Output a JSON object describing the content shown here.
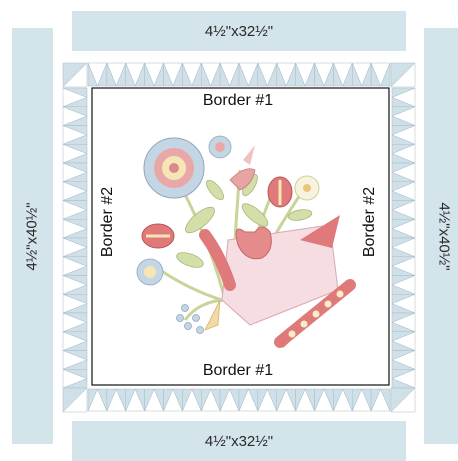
{
  "outer_strips": {
    "top_label": "4½\"x32½\"",
    "bottom_label": "4½\"x32½\"",
    "left_label": "4½\"x40½\"",
    "right_label": "4½\"x40½\""
  },
  "borders": {
    "top_label": "Border #1",
    "bottom_label": "Border #1",
    "left_label": "Border #2",
    "right_label": "Border #2"
  },
  "colors": {
    "strip_fill": "#d3e4ea",
    "triangle_light": "#cfe0e8",
    "triangle_white": "#ffffff",
    "center_frame": "#111111",
    "flower_pink": "#e8a3a3",
    "flower_red": "#d96b6b",
    "leaf_green": "#cfdca8",
    "basket_pink": "#f3d6dc",
    "flower_blue": "#b9cfe0"
  }
}
